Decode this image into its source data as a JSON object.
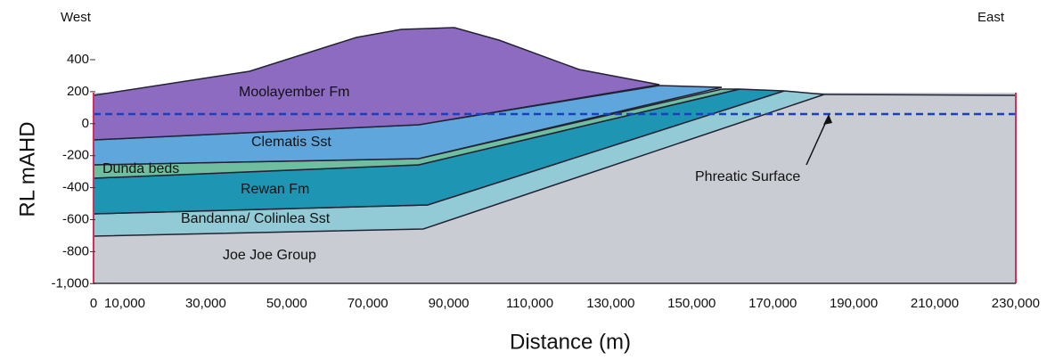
{
  "header": {
    "west": "West",
    "east": "East"
  },
  "axes": {
    "y_title": "RL mAHD",
    "y_ticks": [
      "400",
      "200",
      "0",
      "-200",
      "-400",
      "-600",
      "-800",
      "-1,000"
    ],
    "x_title": "Distance (m)",
    "x_ticks": [
      "0",
      "10,000",
      "30,000",
      "50,000",
      "70,000",
      "90,000",
      "110,000",
      "130,000",
      "150,000",
      "170,000",
      "190,000",
      "210,000",
      "230,000"
    ]
  },
  "layers": [
    "Moolayember Fm",
    "Clematis Sst",
    "Dunda beds",
    "Rewan Fm",
    "Bandanna/ Colinlea Sst",
    "Joe Joe Group"
  ],
  "annotation": "Phreatic Surface"
}
